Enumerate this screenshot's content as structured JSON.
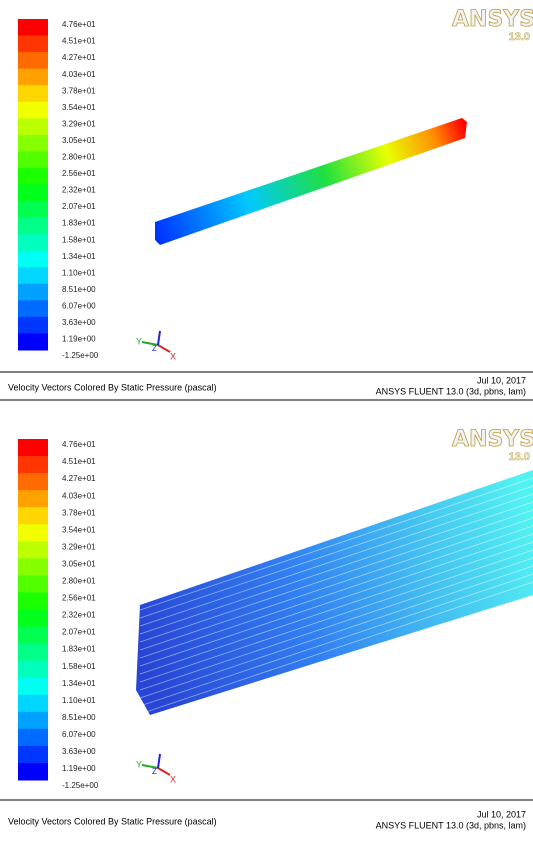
{
  "panels": [
    {
      "colorbar": [
        "4.76e+01",
        "4.51e+01",
        "4.27e+01",
        "4.03e+01",
        "3.78e+01",
        "3.54e+01",
        "3.29e+01",
        "3.05e+01",
        "2.80e+01",
        "2.56e+01",
        "2.32e+01",
        "2.07e+01",
        "1.83e+01",
        "1.58e+01",
        "1.34e+01",
        "1.10e+01",
        "8.51e+00",
        "6.07e+00",
        "3.63e+00",
        "1.19e+00",
        "-1.25e+00"
      ],
      "logo": "ANSYS",
      "version": "13.0",
      "triad": [
        "Y",
        "Z",
        "X"
      ],
      "caption": "Velocity Vectors Colored By Static Pressure (pascal)",
      "date": "Jul 10, 2017",
      "software": "ANSYS FLUENT 13.0 (3d, pbns, lam)"
    },
    {
      "colorbar": [
        "4.76e+01",
        "4.51e+01",
        "4.27e+01",
        "4.03e+01",
        "3.78e+01",
        "3.54e+01",
        "3.29e+01",
        "3.05e+01",
        "2.80e+01",
        "2.56e+01",
        "2.32e+01",
        "2.07e+01",
        "1.83e+01",
        "1.58e+01",
        "1.34e+01",
        "1.10e+01",
        "8.51e+00",
        "6.07e+00",
        "3.63e+00",
        "1.19e+00",
        "-1.25e+00"
      ],
      "logo": "ANSYS",
      "version": "13.0",
      "triad": [
        "Y",
        "Z",
        "X"
      ],
      "caption": "Velocity Vectors Colored By Static Pressure (pascal)",
      "date": "Jul 10, 2017",
      "software": "ANSYS FLUENT 13.0 (3d, pbns, lam)"
    }
  ]
}
